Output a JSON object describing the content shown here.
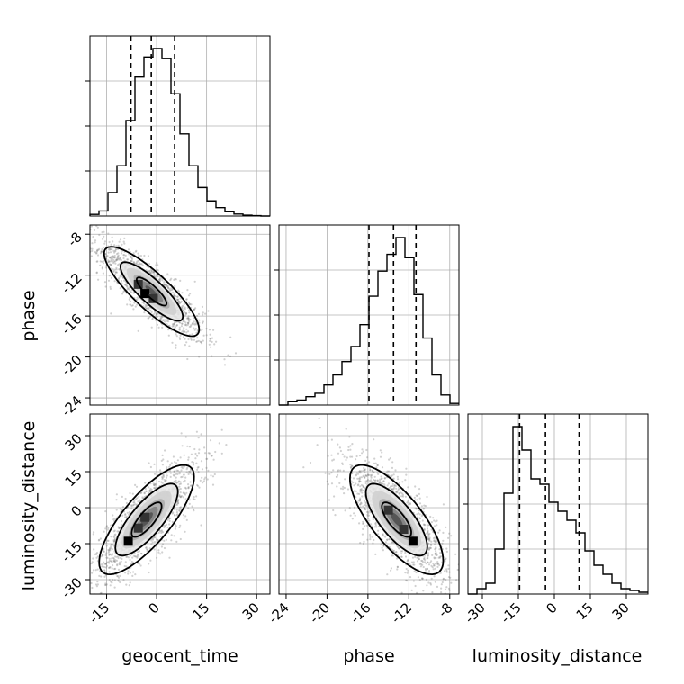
{
  "chart_data": {
    "type": "corner",
    "parameters": [
      "geocent_time",
      "phase",
      "luminosity_distance"
    ],
    "axis_labels": {
      "geocent_time": "geocent_time",
      "phase": "phase",
      "luminosity_distance": "luminosity_distance"
    },
    "ranges": {
      "geocent_time": [
        -20,
        34
      ],
      "phase": [
        -24.7,
        -7.1
      ],
      "luminosity_distance": [
        -36,
        39
      ]
    },
    "ticks": {
      "geocent_time": [
        "-15",
        "0",
        "15",
        "30"
      ],
      "phase": [
        "-24",
        "-20",
        "-16",
        "-12",
        "-8"
      ],
      "luminosity_distance": [
        "-30",
        "-15",
        "0",
        "15",
        "30"
      ]
    },
    "tick_values": {
      "geocent_time": [
        -15,
        0,
        15,
        30
      ],
      "phase": [
        -24,
        -20,
        -16,
        -12,
        -8
      ],
      "luminosity_distance": [
        -30,
        -15,
        0,
        15,
        30
      ]
    },
    "quantiles": {
      "geocent_time": [
        -7.7,
        -1.6,
        5.4
      ],
      "phase": [
        -15.9,
        -13.5,
        -11.3
      ],
      "luminosity_distance": [
        -14.5,
        -3.7,
        10.3
      ]
    },
    "histograms": {
      "geocent_time": {
        "edges": [
          -20,
          -17.3,
          -14.6,
          -11.9,
          -9.2,
          -6.5,
          -3.8,
          -1.1,
          1.6,
          4.3,
          7.0,
          9.7,
          12.4,
          15.1,
          17.8,
          20.5,
          23.2,
          25.9,
          28.6,
          31.3,
          34
        ],
        "counts": [
          0.01,
          0.03,
          0.14,
          0.3,
          0.57,
          0.83,
          0.95,
          1.0,
          0.94,
          0.73,
          0.49,
          0.3,
          0.17,
          0.09,
          0.05,
          0.025,
          0.012,
          0.005,
          0.002,
          0.0
        ]
      },
      "phase": {
        "edges": [
          -24.7,
          -23.82,
          -22.94,
          -22.06,
          -21.18,
          -20.3,
          -19.42,
          -18.54,
          -17.66,
          -16.78,
          -15.9,
          -15.02,
          -14.14,
          -13.26,
          -12.38,
          -11.5,
          -10.62,
          -9.74,
          -8.86,
          -7.98,
          -7.1
        ],
        "counts": [
          0.0,
          0.02,
          0.03,
          0.05,
          0.07,
          0.12,
          0.18,
          0.26,
          0.35,
          0.48,
          0.65,
          0.8,
          0.9,
          1.0,
          0.88,
          0.66,
          0.4,
          0.18,
          0.06,
          0.01
        ]
      },
      "luminosity_distance": {
        "edges": [
          -36,
          -32.25,
          -28.5,
          -24.75,
          -21,
          -17.25,
          -13.5,
          -9.75,
          -6,
          -2.25,
          1.5,
          5.25,
          9,
          12.75,
          16.5,
          20.25,
          24,
          27.75,
          31.5,
          35.25,
          39
        ],
        "counts": [
          0.0,
          0.03,
          0.06,
          0.25,
          0.56,
          0.93,
          0.8,
          0.64,
          0.61,
          0.51,
          0.46,
          0.41,
          0.34,
          0.24,
          0.16,
          0.11,
          0.06,
          0.03,
          0.02,
          0.01
        ]
      }
    },
    "correlations": {
      "geocent_time|phase": {
        "center": [
          -1.5,
          -13.6
        ],
        "sigma": [
          7.5,
          2.3
        ],
        "rho": -0.85,
        "peak_cells": [
          [
            -3.5,
            -13.8
          ],
          [
            -1.0,
            -14.3
          ],
          [
            -5.5,
            -12.9
          ]
        ]
      },
      "geocent_time|luminosity_distance": {
        "center": [
          -3.0,
          -5.0
        ],
        "sigma": [
          7.5,
          12.0
        ],
        "rho": 0.78,
        "peak_cells": [
          [
            -8.5,
            -14.0
          ],
          [
            -5.5,
            -8.5
          ],
          [
            -3.5,
            -4.0
          ]
        ]
      },
      "phase|luminosity_distance": {
        "center": [
          -13.2,
          -5.0
        ],
        "sigma": [
          2.4,
          12.0
        ],
        "rho": -0.75,
        "peak_cells": [
          [
            -11.6,
            -14.0
          ],
          [
            -12.5,
            -9.0
          ],
          [
            -14.0,
            -1.0
          ]
        ]
      }
    },
    "grid": true,
    "panel_layout": "lower-triangle"
  }
}
